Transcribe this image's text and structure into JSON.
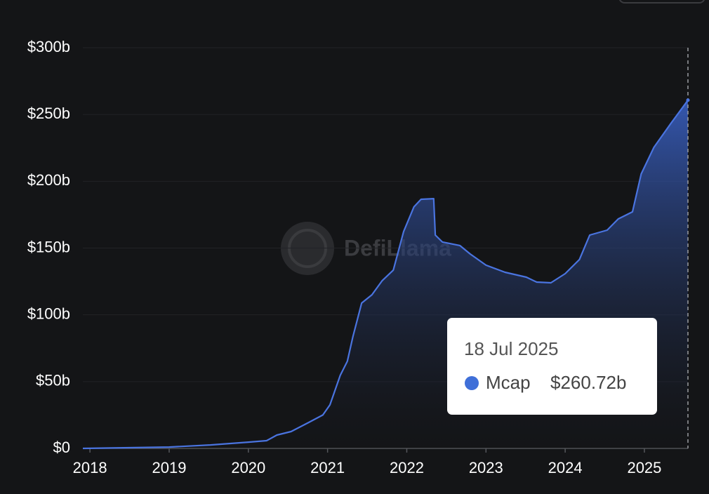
{
  "chart_data": {
    "type": "area",
    "watermark": "DefiLlama",
    "x": [
      2017.91,
      2019.0,
      2019.52,
      2020.0,
      2020.23,
      2020.36,
      2020.54,
      2020.76,
      2020.94,
      2021.03,
      2021.16,
      2021.25,
      2021.32,
      2021.43,
      2021.56,
      2021.69,
      2021.83,
      2021.96,
      2022.09,
      2022.18,
      2022.34,
      2022.36,
      2022.45,
      2022.67,
      2022.8,
      2023.0,
      2023.24,
      2023.51,
      2023.64,
      2023.82,
      2024.0,
      2024.18,
      2024.31,
      2024.53,
      2024.67,
      2024.85,
      2024.96,
      2025.12,
      2025.34,
      2025.55
    ],
    "series": [
      {
        "name": "Mcap",
        "color": "#4a74e0",
        "values": [
          0,
          1,
          2.6,
          4.7,
          5.8,
          10,
          12.6,
          19.4,
          25,
          32.6,
          54.7,
          65.2,
          83.6,
          108.8,
          115,
          125.6,
          133.5,
          162.4,
          180.8,
          186.5,
          187,
          159.7,
          154.5,
          151.9,
          145.6,
          137.2,
          131.9,
          128.2,
          124.5,
          124,
          130.8,
          141.4,
          159.7,
          163.4,
          171.8,
          177.1,
          205.5,
          225.4,
          243.8,
          260.72
        ]
      }
    ],
    "xlim": [
      2017.91,
      2025.55
    ],
    "xticks": [
      2018,
      2019,
      2020,
      2021,
      2022,
      2023,
      2024,
      2025
    ],
    "ylim": [
      0,
      300
    ],
    "yticks": [
      {
        "value": 0,
        "label": "$0"
      },
      {
        "value": 50,
        "label": "$50b"
      },
      {
        "value": 100,
        "label": "$100b"
      },
      {
        "value": 150,
        "label": "$150b"
      },
      {
        "value": 200,
        "label": "$200b"
      },
      {
        "value": 250,
        "label": "$250b"
      },
      {
        "value": 300,
        "label": "$300b"
      }
    ],
    "grid": true,
    "tooltip": {
      "x": 2025.55,
      "date": "18 Jul 2025",
      "value": 260.72,
      "value_label": "$260.72b"
    }
  }
}
